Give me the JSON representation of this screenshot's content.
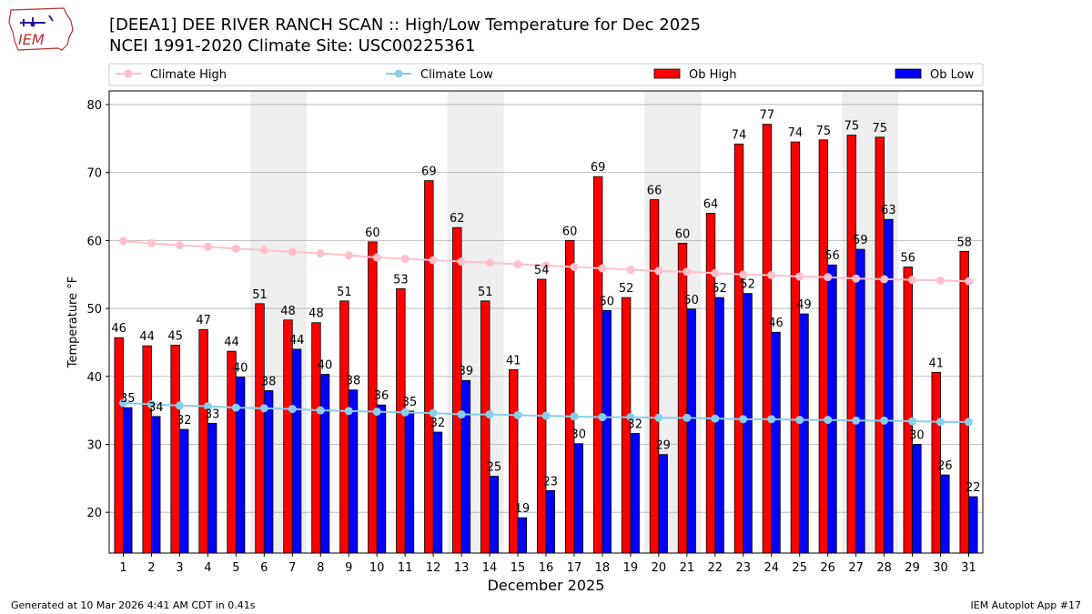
{
  "title_line1": "[DEEA1] DEE RIVER RANCH SCAN :: High/Low Temperature for Dec 2025",
  "title_line2": "NCEI 1991-2020 Climate Site: USC00225361",
  "logo_text": "IEM",
  "footer_left": "Generated at 10 Mar 2026 4:41 AM CDT in 0.41s",
  "footer_right": "IEM Autoplot App #17",
  "colors": {
    "ob_high": "#ff0000",
    "ob_low": "#0000ff",
    "climate_high": "#ffc0cb",
    "climate_low": "#87ceeb",
    "weekend_shade": "#eeeeee"
  },
  "chart_data": {
    "type": "bar",
    "xlabel": "December 2025",
    "ylabel": "Temperature °F",
    "ylim": [
      14,
      82
    ],
    "yticks": [
      20,
      30,
      40,
      50,
      60,
      70,
      80
    ],
    "grid": true,
    "legend_placement": "top",
    "categories": [
      1,
      2,
      3,
      4,
      5,
      6,
      7,
      8,
      9,
      10,
      11,
      12,
      13,
      14,
      15,
      16,
      17,
      18,
      19,
      20,
      21,
      22,
      23,
      24,
      25,
      26,
      27,
      28,
      29,
      30,
      31
    ],
    "shaded_day_ranges": [
      [
        6,
        7
      ],
      [
        13,
        14
      ],
      [
        20,
        21
      ],
      [
        27,
        28
      ]
    ],
    "series": [
      {
        "name": "Ob High",
        "kind": "bar",
        "labels_shown": true,
        "values": [
          45.7,
          44.5,
          44.6,
          46.9,
          43.7,
          50.7,
          48.3,
          47.9,
          51.1,
          59.8,
          52.9,
          68.8,
          61.9,
          51.1,
          41.0,
          54.3,
          60.0,
          69.4,
          51.6,
          66.0,
          59.6,
          64.0,
          74.2,
          77.1,
          74.5,
          74.8,
          75.5,
          75.2,
          56.1,
          40.6,
          58.4
        ],
        "labels": [
          "46",
          "44",
          "45",
          "47",
          "44",
          "51",
          "48",
          "48",
          "51",
          "60",
          "53",
          "69",
          "62",
          "51",
          "41",
          "54",
          "60",
          "69",
          "52",
          "66",
          "60",
          "64",
          "74",
          "77",
          "74",
          "75",
          "75",
          "75",
          "56",
          "41",
          "58"
        ]
      },
      {
        "name": "Ob Low",
        "kind": "bar",
        "labels_shown": true,
        "values": [
          35.4,
          34.1,
          32.2,
          33.1,
          39.9,
          37.9,
          44.0,
          40.3,
          38.0,
          35.8,
          34.9,
          31.8,
          39.4,
          25.3,
          19.2,
          23.2,
          30.1,
          49.7,
          31.6,
          28.5,
          49.9,
          51.6,
          52.2,
          46.5,
          49.2,
          56.4,
          58.7,
          63.1,
          30.0,
          25.5,
          22.3
        ],
        "labels": [
          "35",
          "34",
          "32",
          "33",
          "40",
          "38",
          "44",
          "40",
          "38",
          "36",
          "35",
          "32",
          "39",
          "25",
          "19",
          "23",
          "30",
          "50",
          "32",
          "29",
          "50",
          "52",
          "52",
          "46",
          "49",
          "56",
          "59",
          "63",
          "30",
          "26",
          "22"
        ]
      },
      {
        "name": "Climate High",
        "kind": "line",
        "values": [
          59.9,
          59.6,
          59.3,
          59.1,
          58.8,
          58.6,
          58.3,
          58.1,
          57.8,
          57.5,
          57.3,
          57.1,
          56.9,
          56.7,
          56.5,
          56.3,
          56.1,
          55.9,
          55.7,
          55.5,
          55.4,
          55.2,
          55.0,
          54.9,
          54.7,
          54.6,
          54.4,
          54.3,
          54.2,
          54.1,
          54.0
        ]
      },
      {
        "name": "Climate Low",
        "kind": "line",
        "values": [
          36.1,
          35.9,
          35.7,
          35.6,
          35.4,
          35.3,
          35.2,
          35.0,
          34.9,
          34.8,
          34.7,
          34.6,
          34.4,
          34.4,
          34.3,
          34.2,
          34.1,
          34.0,
          34.0,
          33.9,
          33.9,
          33.8,
          33.7,
          33.7,
          33.6,
          33.6,
          33.5,
          33.5,
          33.4,
          33.3,
          33.3
        ]
      }
    ]
  }
}
